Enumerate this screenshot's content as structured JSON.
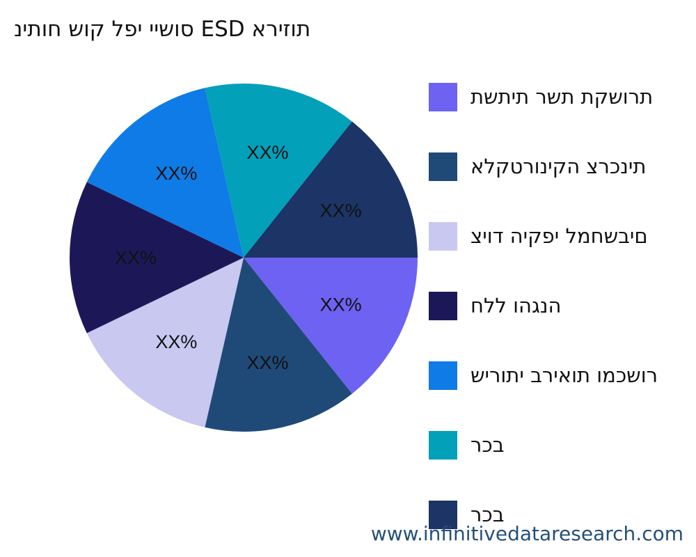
{
  "title": "סושיי יפל קוש חותינ ESD תוזירא",
  "watermark": "www.infinitivedataresearch.com",
  "chart_data": {
    "type": "pie",
    "title": "סושיי יפל קוש חותינ ESD תוזירא",
    "legend_position": "right",
    "slices": [
      {
        "name": "תרושקת תשר תיתשת",
        "value": 14.29,
        "label": "XX%",
        "color": "#6e62f2"
      },
      {
        "name": "תינכרצ הקינורטקלא",
        "value": 14.29,
        "label": "XX%",
        "color": "#1f4a78"
      },
      {
        "name": "םיבשחמל יפקיה דויצ",
        "value": 14.29,
        "label": "XX%",
        "color": "#c8c8f0"
      },
      {
        "name": "הנגהו ללח",
        "value": 14.29,
        "label": "XX%",
        "color": "#1c1858"
      },
      {
        "name": "רושכמו תואירב יתוריש",
        "value": 14.29,
        "label": "XX%",
        "color": "#0f7be6"
      },
      {
        "name": "בכר",
        "value": 14.29,
        "label": "XX%",
        "color": "#03a0ba"
      },
      {
        "name": "בכר",
        "value": 14.29,
        "label": "XX%",
        "color": "#1c3466"
      }
    ]
  }
}
